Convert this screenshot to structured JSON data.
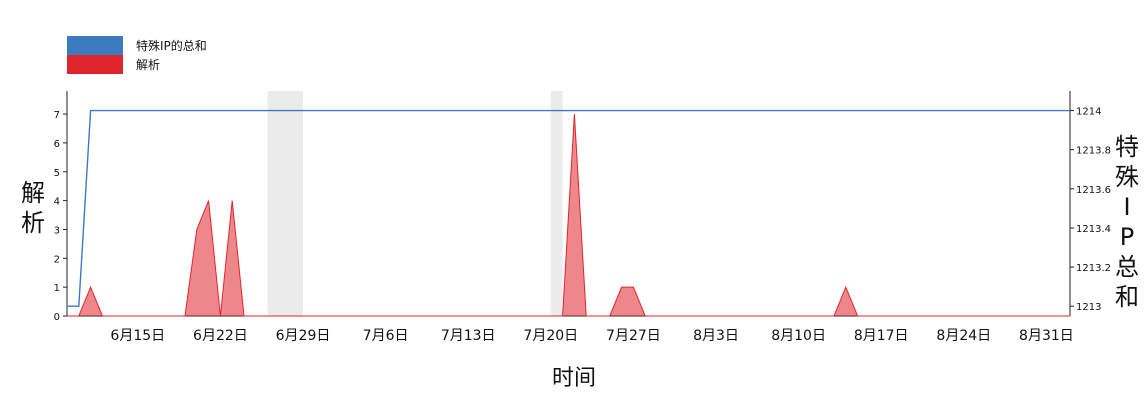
{
  "chart_data": {
    "type": "area",
    "xlabel": "时间",
    "x_ticks": [
      "6月15日",
      "6月22日",
      "6月29日",
      "7月6日",
      "7月13日",
      "7月20日",
      "7月27日",
      "8月3日",
      "8月10日",
      "8月17日",
      "8月24日",
      "8月31日"
    ],
    "x_domain": [
      "2020-06-09",
      "2020-09-02"
    ],
    "shaded_ranges": [
      [
        "2020-06-26",
        "2020-06-29"
      ],
      [
        "2020-07-20",
        "2020-07-21"
      ]
    ],
    "y_left": {
      "label": "解析",
      "ylim": [
        0,
        7.8
      ],
      "ticks": [
        0,
        1,
        2,
        3,
        4,
        5,
        6,
        7
      ]
    },
    "y_right": {
      "label": "特殊IP的总和",
      "ylim": [
        1212.95,
        1214.1
      ],
      "ticks": [
        "1213",
        "1213.2",
        "1213.4",
        "1213.6",
        "1213.8",
        "1214"
      ]
    },
    "series": [
      {
        "name": "特殊IP的总和",
        "axis": "right",
        "color": "#3c7bbf",
        "type": "line",
        "points": [
          [
            "2020-06-09",
            1213
          ],
          [
            "2020-06-10",
            1213
          ],
          [
            "2020-06-11",
            1214
          ],
          [
            "2020-09-02",
            1214
          ]
        ]
      },
      {
        "name": "解析",
        "axis": "left",
        "color": "#e0252b",
        "type": "area",
        "points": [
          [
            "2020-06-09",
            0
          ],
          [
            "2020-06-10",
            0
          ],
          [
            "2020-06-11",
            1
          ],
          [
            "2020-06-12",
            0
          ],
          [
            "2020-06-19",
            0
          ],
          [
            "2020-06-20",
            3
          ],
          [
            "2020-06-21",
            4
          ],
          [
            "2020-06-22",
            0
          ],
          [
            "2020-06-23",
            4
          ],
          [
            "2020-06-24",
            0
          ],
          [
            "2020-07-21",
            0
          ],
          [
            "2020-07-22",
            7
          ],
          [
            "2020-07-23",
            0
          ],
          [
            "2020-07-25",
            0
          ],
          [
            "2020-07-26",
            1
          ],
          [
            "2020-07-27",
            1
          ],
          [
            "2020-07-28",
            0
          ],
          [
            "2020-08-13",
            0
          ],
          [
            "2020-08-14",
            1
          ],
          [
            "2020-08-15",
            0
          ],
          [
            "2020-09-02",
            0
          ]
        ]
      }
    ],
    "legend": {
      "position": "top-left",
      "entries": [
        "特殊IP的总和",
        "解析"
      ]
    }
  },
  "axis_titles": {
    "left": [
      "解",
      "析"
    ],
    "right": [
      "特",
      "殊",
      "I",
      "P",
      "总",
      "和"
    ],
    "x": "时间"
  }
}
